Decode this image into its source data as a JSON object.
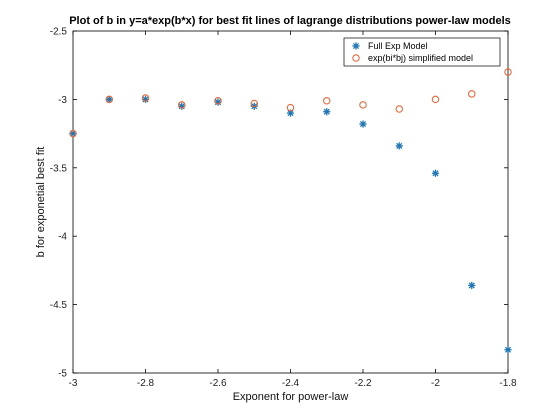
{
  "chart_data": {
    "type": "scatter",
    "title": "Plot of b in y=a*exp(b*x) for best fit lines of lagrange distributions power-law models",
    "xlabel": "Exponent for power-law",
    "ylabel": "b for exponetial best fit",
    "xlim": [
      -3,
      -1.8
    ],
    "ylim": [
      -5,
      -2.5
    ],
    "xticks": [
      -3,
      -2.8,
      -2.6,
      -2.4,
      -2.2,
      -2,
      -1.8
    ],
    "yticks": [
      -5,
      -4.5,
      -4,
      -3.5,
      -3,
      -2.5
    ],
    "xtick_labels": [
      "-3",
      "-2.8",
      "-2.6",
      "-2.4",
      "-2.2",
      "-2",
      "-1.8"
    ],
    "ytick_labels": [
      "-5",
      "-4.5",
      "-4",
      "-3.5",
      "-3",
      "-2.5"
    ],
    "grid": false,
    "legend_position": "top-right",
    "series": [
      {
        "name": "Full Exp Model",
        "marker": "asterisk",
        "color": "#1f77b4",
        "x": [
          -3.0,
          -2.9,
          -2.8,
          -2.7,
          -2.6,
          -2.5,
          -2.4,
          -2.3,
          -2.2,
          -2.1,
          -2.0,
          -1.9,
          -1.8
        ],
        "y": [
          -3.25,
          -3.0,
          -3.0,
          -3.05,
          -3.02,
          -3.05,
          -3.1,
          -3.09,
          -3.18,
          -3.34,
          -3.54,
          -4.36,
          -4.83
        ]
      },
      {
        "name": "exp(bi*bj) simplified model",
        "marker": "circle",
        "color": "#e8693c",
        "x": [
          -3.0,
          -2.9,
          -2.8,
          -2.7,
          -2.6,
          -2.5,
          -2.4,
          -2.3,
          -2.2,
          -2.1,
          -2.0,
          -1.9,
          -1.8
        ],
        "y": [
          -3.25,
          -3.0,
          -2.99,
          -3.04,
          -3.01,
          -3.03,
          -3.06,
          -3.01,
          -3.04,
          -3.07,
          -3.0,
          -2.96,
          -2.8
        ]
      }
    ]
  }
}
